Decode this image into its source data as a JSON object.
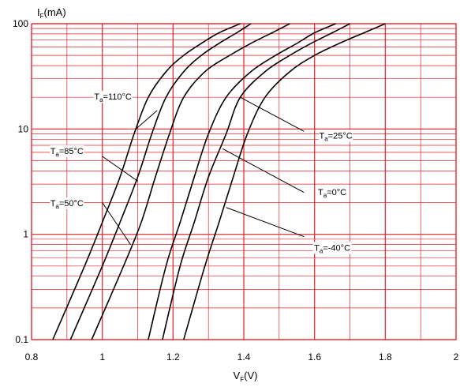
{
  "chart_data": {
    "type": "line",
    "title": "",
    "xlabel": {
      "main": "V",
      "sub": "F",
      "suffix": "(V)"
    },
    "ylabel": {
      "main": "I",
      "sub": "F",
      "suffix": "(mA)"
    },
    "xlim": [
      0.8,
      2.0
    ],
    "ylim": [
      0.1,
      100
    ],
    "yscale": "log",
    "x_ticks": [
      "0.8",
      "1",
      "1.2",
      "1.4",
      "1.6",
      "1.8",
      "2"
    ],
    "y_ticks": [
      "0.1",
      "1",
      "10",
      "100"
    ],
    "grid": true,
    "grid_color": "#e8202a",
    "line_color": "#000000",
    "series": [
      {
        "name": "Ta=110°C",
        "label_main": "T",
        "label_sub": "a",
        "label_suffix": "=110°C",
        "x": [
          0.86,
          0.95,
          1.0,
          1.05,
          1.09,
          1.13,
          1.18,
          1.23,
          1.28,
          1.33,
          1.39
        ],
        "y": [
          0.1,
          0.5,
          1.3,
          3.5,
          9.0,
          20,
          35,
          50,
          65,
          82,
          100
        ]
      },
      {
        "name": "Ta=85°C",
        "label_main": "T",
        "label_sub": "a",
        "label_suffix": "=85°C",
        "x": [
          0.91,
          1.0,
          1.05,
          1.1,
          1.14,
          1.18,
          1.23,
          1.28,
          1.33,
          1.38,
          1.42
        ],
        "y": [
          0.1,
          0.5,
          1.3,
          3.5,
          9.0,
          20,
          35,
          50,
          65,
          82,
          100
        ]
      },
      {
        "name": "Ta=50°C",
        "label_main": "T",
        "label_sub": "a",
        "label_suffix": "=50°C",
        "x": [
          0.97,
          1.06,
          1.11,
          1.15,
          1.19,
          1.23,
          1.29,
          1.36,
          1.42,
          1.48,
          1.53
        ],
        "y": [
          0.1,
          0.5,
          1.3,
          3.5,
          9.0,
          20,
          35,
          50,
          65,
          82,
          100
        ]
      },
      {
        "name": "Ta=25°C",
        "label_main": "T",
        "label_sub": "a",
        "label_suffix": "=25°C",
        "x": [
          1.13,
          1.18,
          1.22,
          1.26,
          1.3,
          1.35,
          1.42,
          1.49,
          1.55,
          1.6,
          1.66
        ],
        "y": [
          0.1,
          0.5,
          1.3,
          3.5,
          9.0,
          20,
          35,
          50,
          65,
          82,
          100
        ]
      },
      {
        "name": "Ta=0°C",
        "label_main": "T",
        "label_sub": "a",
        "label_suffix": "=0°C",
        "x": [
          1.17,
          1.22,
          1.26,
          1.3,
          1.35,
          1.39,
          1.46,
          1.53,
          1.59,
          1.65,
          1.7
        ],
        "y": [
          0.1,
          0.5,
          1.3,
          3.5,
          9.0,
          20,
          35,
          50,
          65,
          82,
          100
        ]
      },
      {
        "name": "Ta=-40°C",
        "label_main": "T",
        "label_sub": "a",
        "label_suffix": "=-40°C",
        "x": [
          1.23,
          1.29,
          1.33,
          1.37,
          1.41,
          1.46,
          1.53,
          1.6,
          1.67,
          1.74,
          1.8
        ],
        "y": [
          0.1,
          0.5,
          1.3,
          3.5,
          9.0,
          20,
          35,
          50,
          65,
          82,
          100
        ]
      }
    ],
    "annotations": [
      {
        "series": "Ta=110°C",
        "text_x": 1.03,
        "text_y": 19,
        "anchor": "middle",
        "leader_from": [
          1.155,
          15
        ],
        "leader_to": [
          1.095,
          10
        ]
      },
      {
        "series": "Ta=85°C",
        "text_x": 0.9,
        "text_y": 5.8,
        "anchor": "middle",
        "leader_from": [
          1.0,
          5.5
        ],
        "leader_to": [
          1.1,
          3.2
        ]
      },
      {
        "series": "Ta=50°C",
        "text_x": 0.9,
        "text_y": 1.85,
        "anchor": "middle",
        "leader_from": [
          1.0,
          2.0
        ],
        "leader_to": [
          1.08,
          0.8
        ]
      },
      {
        "series": "Ta=25°C",
        "text_x": 1.66,
        "text_y": 8.1,
        "anchor": "middle",
        "leader_from": [
          1.39,
          20
        ],
        "leader_to": [
          1.57,
          9.5
        ]
      },
      {
        "series": "Ta=0°C",
        "text_x": 1.65,
        "text_y": 2.35,
        "anchor": "middle",
        "leader_from": [
          1.34,
          6.5
        ],
        "leader_to": [
          1.57,
          2.5
        ]
      },
      {
        "series": "Ta=-40°C",
        "text_x": 1.65,
        "text_y": 0.7,
        "anchor": "middle",
        "leader_from": [
          1.35,
          1.8
        ],
        "leader_to": [
          1.57,
          0.95
        ]
      }
    ]
  }
}
